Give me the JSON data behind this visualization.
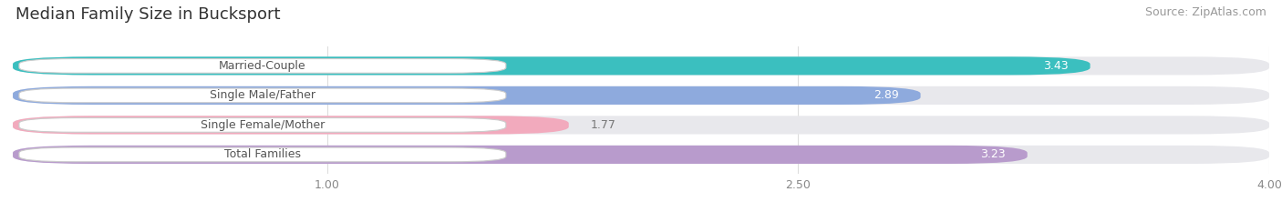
{
  "title": "Median Family Size in Bucksport",
  "source": "Source: ZipAtlas.com",
  "categories": [
    "Married-Couple",
    "Single Male/Father",
    "Single Female/Mother",
    "Total Families"
  ],
  "values": [
    3.43,
    2.89,
    1.77,
    3.23
  ],
  "bar_colors": [
    "#3bbfbf",
    "#8eaadd",
    "#f2aabd",
    "#b89bcc"
  ],
  "bar_bg_color": "#e8e8ec",
  "xlim": [
    0,
    4.0
  ],
  "xticks": [
    1.0,
    2.5,
    4.0
  ],
  "value_label_colors": [
    "white",
    "white",
    "#777777",
    "white"
  ],
  "title_fontsize": 13,
  "source_fontsize": 9,
  "bar_label_fontsize": 9,
  "category_fontsize": 9,
  "category_text_color": "#555555"
}
